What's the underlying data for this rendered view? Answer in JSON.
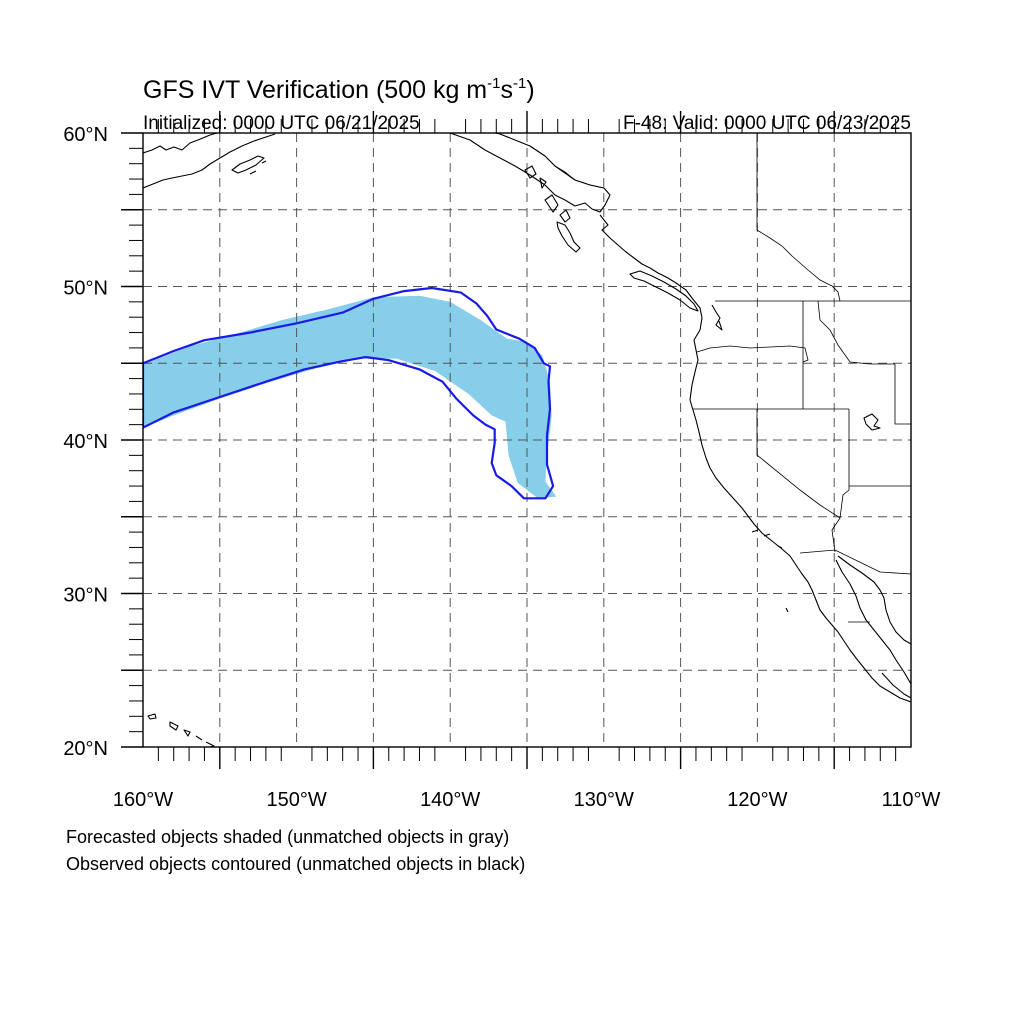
{
  "title": {
    "text": "GFS IVT Verification (500 kg m",
    "sup1": "-1",
    "mid": "s",
    "sup2": "-1",
    "end": ")"
  },
  "init_label": "Initialized: 0000 UTC 06/21/2025",
  "valid_label": "F-48: Valid: 0000 UTC 06/23/2025",
  "axes": {
    "lon_range": [
      -160,
      -110
    ],
    "lat_range": [
      20,
      60
    ],
    "lon_labels": [
      {
        "lon": -160,
        "text": "160°W"
      },
      {
        "lon": -150,
        "text": "150°W"
      },
      {
        "lon": -140,
        "text": "140°W"
      },
      {
        "lon": -130,
        "text": "130°W"
      },
      {
        "lon": -120,
        "text": "120°W"
      },
      {
        "lon": -110,
        "text": "110°W"
      }
    ],
    "lat_labels": [
      {
        "lat": 60,
        "text": "60°N"
      },
      {
        "lat": 50,
        "text": "50°N"
      },
      {
        "lat": 40,
        "text": "40°N"
      },
      {
        "lat": 30,
        "text": "30°N"
      },
      {
        "lat": 20,
        "text": "20°N"
      }
    ],
    "grid_spacing_deg": 5,
    "grid_style": "dashed"
  },
  "captions": {
    "forecast": "Forecasted objects shaded (unmatched objects in gray)",
    "observed": "Observed objects contoured (unmatched objects in black)"
  },
  "colors": {
    "forecast_fill": "#87ceea",
    "observed_contour": "#1a1ae6",
    "coastline": "#000000",
    "grid": "#555555"
  },
  "chart_data": {
    "type": "map",
    "forecast_object": [
      [
        -160,
        44.9
      ],
      [
        -157,
        46.1
      ],
      [
        -154,
        46.9
      ],
      [
        -151,
        47.8
      ],
      [
        -148,
        48.5
      ],
      [
        -145,
        49.3
      ],
      [
        -142,
        49.4
      ],
      [
        -140,
        49.0
      ],
      [
        -138,
        47.8
      ],
      [
        -136.3,
        46.6
      ],
      [
        -135,
        46.4
      ],
      [
        -134,
        45.5
      ],
      [
        -133.5,
        43.8
      ],
      [
        -133.4,
        41.5
      ],
      [
        -133.7,
        39.0
      ],
      [
        -133.8,
        37.3
      ],
      [
        -133.1,
        36.3
      ],
      [
        -134.3,
        36.2
      ],
      [
        -135.6,
        37.2
      ],
      [
        -136.2,
        39.0
      ],
      [
        -136.4,
        41.2
      ],
      [
        -137.3,
        41.6
      ],
      [
        -138.8,
        43.0
      ],
      [
        -141,
        44.5
      ],
      [
        -143.5,
        45.3
      ],
      [
        -146,
        45.3
      ],
      [
        -149,
        44.6
      ],
      [
        -152,
        43.7
      ],
      [
        -155,
        42.7
      ],
      [
        -158,
        41.6
      ],
      [
        -160,
        40.8
      ]
    ],
    "observed_contour": [
      [
        -160,
        45.0
      ],
      [
        -158,
        45.8
      ],
      [
        -156,
        46.5
      ],
      [
        -153,
        47.0
      ],
      [
        -150,
        47.6
      ],
      [
        -147,
        48.3
      ],
      [
        -145,
        49.2
      ],
      [
        -143,
        49.7
      ],
      [
        -141.2,
        49.9
      ],
      [
        -139.3,
        49.6
      ],
      [
        -138.3,
        48.9
      ],
      [
        -137.6,
        48.1
      ],
      [
        -137.0,
        47.2
      ],
      [
        -135.5,
        46.6
      ],
      [
        -134.5,
        46.0
      ],
      [
        -133.9,
        45.0
      ],
      [
        -133.5,
        44.8
      ],
      [
        -133.6,
        43.8
      ],
      [
        -133.5,
        42.0
      ],
      [
        -133.7,
        40.3
      ],
      [
        -133.7,
        38.4
      ],
      [
        -133.3,
        37.0
      ],
      [
        -133.8,
        36.2
      ],
      [
        -135.2,
        36.2
      ],
      [
        -136.0,
        37.0
      ],
      [
        -137.0,
        37.7
      ],
      [
        -137.3,
        38.5
      ],
      [
        -137.1,
        39.8
      ],
      [
        -137.1,
        40.7
      ],
      [
        -137.7,
        41.0
      ],
      [
        -138.5,
        41.6
      ],
      [
        -139.6,
        42.7
      ],
      [
        -140.5,
        43.8
      ],
      [
        -142.0,
        44.6
      ],
      [
        -144.0,
        45.2
      ],
      [
        -145.5,
        45.4
      ],
      [
        -147.2,
        45.1
      ],
      [
        -149.5,
        44.6
      ],
      [
        -152.0,
        43.8
      ],
      [
        -155.0,
        42.8
      ],
      [
        -158.0,
        41.8
      ],
      [
        -160,
        40.8
      ]
    ]
  }
}
